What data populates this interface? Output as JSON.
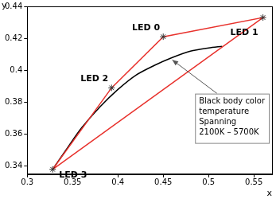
{
  "chart_data": {
    "type": "scatter",
    "x_label": "x",
    "y_label": "y",
    "xlim": [
      0.3,
      0.57
    ],
    "xticks": [
      0.3,
      0.35,
      0.4,
      0.45,
      0.5,
      0.55
    ],
    "ylim": [
      0.335,
      0.44
    ],
    "yticks": [
      0.34,
      0.36,
      0.38,
      0.4,
      0.42,
      0.44
    ],
    "grid": false,
    "gamut": {
      "color": "#e8322d",
      "marker": "star",
      "points": [
        {
          "label": "LED 3",
          "x": 0.328,
          "y": 0.338
        },
        {
          "label": "LED 2",
          "x": 0.393,
          "y": 0.389
        },
        {
          "label": "LED 0",
          "x": 0.45,
          "y": 0.421
        },
        {
          "label": "LED 1",
          "x": 0.56,
          "y": 0.433
        }
      ]
    },
    "curve": {
      "color": "#000000",
      "x": [
        0.328,
        0.345,
        0.36,
        0.38,
        0.4,
        0.42,
        0.44,
        0.46,
        0.48,
        0.5,
        0.515
      ],
      "values": [
        0.338,
        0.352,
        0.364,
        0.377,
        0.388,
        0.397,
        0.403,
        0.408,
        0.412,
        0.414,
        0.415
      ]
    },
    "annotation": {
      "text": [
        "Black body color",
        "temperature",
        "Spanning",
        "2100K – 5700K"
      ]
    }
  }
}
